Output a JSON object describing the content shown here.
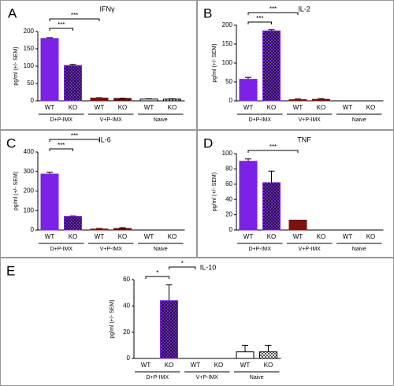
{
  "chart_data": [
    {
      "type": "bar",
      "panel": "A",
      "title": "IFNγ",
      "y_label": "pg/ml (+/- SEM)",
      "categories": [
        "WT",
        "KO",
        "WT",
        "KO",
        "WT",
        "KO"
      ],
      "groups": [
        "D+P-IMX",
        "V+P-IMX",
        "Naive"
      ],
      "values": [
        180,
        102,
        8,
        7,
        5,
        5
      ],
      "errors": [
        2,
        3,
        1,
        1,
        1,
        1
      ],
      "colors": [
        "#7b22e6",
        "#7b22e6",
        "#7a1212",
        "#7a1212",
        "#ffffff",
        "#ffffff"
      ],
      "patterned": [
        false,
        true,
        false,
        true,
        false,
        true
      ],
      "ylim": [
        0,
        200
      ],
      "yticks": [
        0,
        50,
        100,
        150,
        200
      ],
      "annotations": [
        {
          "text": "***",
          "from": 0,
          "to": 1
        },
        {
          "text": "***",
          "from": 0,
          "to": 2
        }
      ]
    },
    {
      "type": "bar",
      "panel": "B",
      "title": "IL-2",
      "y_label": "pg/ml (+/- SEM)",
      "categories": [
        "WT",
        "KO",
        "WT",
        "KO",
        "WT",
        "KO"
      ],
      "groups": [
        "D+P-IMX",
        "V+P-IMX",
        "Naive"
      ],
      "values": [
        57,
        185,
        3,
        4,
        0,
        0
      ],
      "errors": [
        5,
        3,
        2,
        2,
        0,
        0
      ],
      "colors": [
        "#7b22e6",
        "#7b22e6",
        "#7a1212",
        "#7a1212",
        "#ffffff",
        "#ffffff"
      ],
      "patterned": [
        false,
        true,
        false,
        true,
        false,
        true
      ],
      "ylim": [
        0,
        200
      ],
      "yticks": [
        0,
        50,
        100,
        150,
        200
      ],
      "annotations": [
        {
          "text": "***",
          "from": 0,
          "to": 1
        },
        {
          "text": "***",
          "from": 0,
          "to": 2
        }
      ]
    },
    {
      "type": "bar",
      "panel": "C",
      "title": "IL-6",
      "y_label": "pg/ml (+/- SEM)",
      "categories": [
        "WT",
        "KO",
        "WT",
        "KO",
        "WT",
        "KO"
      ],
      "groups": [
        "D+P-IMX",
        "V+P-IMX",
        "Naive"
      ],
      "values": [
        287,
        70,
        5,
        8,
        0,
        0
      ],
      "errors": [
        10,
        2,
        3,
        4,
        0,
        0
      ],
      "colors": [
        "#7b22e6",
        "#7b22e6",
        "#7a1212",
        "#7a1212",
        "#ffffff",
        "#ffffff"
      ],
      "patterned": [
        false,
        true,
        false,
        true,
        false,
        true
      ],
      "ylim": [
        0,
        400
      ],
      "yticks": [
        0,
        100,
        200,
        300,
        400
      ],
      "annotations": [
        {
          "text": "***",
          "from": 0,
          "to": 1
        },
        {
          "text": "***",
          "from": 0,
          "to": 2
        }
      ]
    },
    {
      "type": "bar",
      "panel": "D",
      "title": "TNF",
      "y_label": "pg/ml (+/- SEM)",
      "categories": [
        "WT",
        "KO",
        "WT",
        "KO",
        "WT",
        "KO"
      ],
      "groups": [
        "D+P-IMX",
        "V+P-IMX",
        "Naive"
      ],
      "values": [
        90,
        62,
        13,
        0,
        0,
        0
      ],
      "errors": [
        3,
        15,
        0,
        0,
        0,
        0
      ],
      "colors": [
        "#7b22e6",
        "#7b22e6",
        "#7a1212",
        "#7a1212",
        "#ffffff",
        "#ffffff"
      ],
      "patterned": [
        false,
        true,
        false,
        true,
        false,
        true
      ],
      "ylim": [
        0,
        100
      ],
      "yticks": [
        0,
        20,
        40,
        60,
        80,
        100
      ],
      "annotations": [
        {
          "text": "***",
          "from": 0,
          "to": 2
        }
      ]
    },
    {
      "type": "bar",
      "panel": "E",
      "title": "IL-10",
      "y_label": "pg/ml (+/- SEM)",
      "categories": [
        "WT",
        "KO",
        "WT",
        "KO",
        "WT",
        "KO"
      ],
      "groups": [
        "D+P-IMX",
        "V+P-IMX",
        "Naive"
      ],
      "values": [
        0,
        44,
        0,
        0,
        5,
        5
      ],
      "errors": [
        0,
        12,
        0,
        0,
        5,
        5
      ],
      "colors": [
        "#7b22e6",
        "#7b22e6",
        "#7a1212",
        "#7a1212",
        "#ffffff",
        "#ffffff"
      ],
      "patterned": [
        false,
        true,
        false,
        true,
        false,
        true
      ],
      "ylim": [
        0,
        60
      ],
      "yticks": [
        0,
        20,
        40,
        60
      ],
      "annotations": [
        {
          "text": "*",
          "from": 0,
          "to": 1
        },
        {
          "text": "*",
          "from": 1,
          "to": 2
        }
      ]
    }
  ]
}
